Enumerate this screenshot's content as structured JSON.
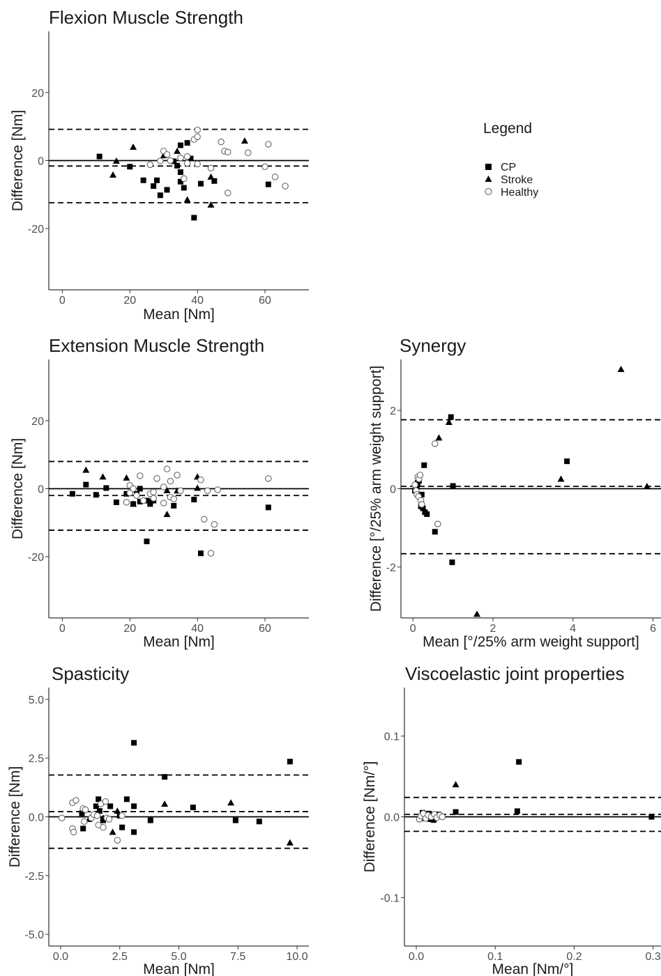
{
  "legend": {
    "title": "Legend",
    "items": [
      {
        "label": "CP",
        "marker": "square-filled"
      },
      {
        "label": "Stroke",
        "marker": "triangle-filled"
      },
      {
        "label": "Healthy",
        "marker": "circle-open"
      }
    ]
  },
  "colors": {
    "marker": "#000000",
    "open_marker_stroke": "#666666",
    "axis": "#000000",
    "text": "#1a1a1a"
  },
  "chart_data": [
    {
      "id": "flexion",
      "type": "scatter",
      "title": "Flexion Muscle Strength",
      "xlabel": "Mean [Nm]",
      "ylabel": "Difference [Nm]",
      "xlim": [
        -4,
        73
      ],
      "ylim": [
        -38,
        38
      ],
      "xticks": [
        0,
        20,
        40,
        60
      ],
      "xticklabels": [
        "0",
        "20",
        "40",
        "60"
      ],
      "yticks": [
        -20,
        0,
        20
      ],
      "yticklabels": [
        "-20",
        "0",
        "20"
      ],
      "reference_lines": {
        "zero": 0,
        "bias": -1.6,
        "loa_upper": 9.2,
        "loa_lower": -12.4
      },
      "series": [
        {
          "name": "CP",
          "points": [
            [
              11,
              1.2
            ],
            [
              20,
              -1.8
            ],
            [
              24,
              -5.8
            ],
            [
              27,
              -7.5
            ],
            [
              28,
              -5.8
            ],
            [
              29,
              -10.2
            ],
            [
              31,
              -8.6
            ],
            [
              33,
              -0.2
            ],
            [
              34,
              -1.5
            ],
            [
              35,
              4.5
            ],
            [
              35,
              -3.4
            ],
            [
              35,
              -6.2
            ],
            [
              36,
              -8
            ],
            [
              37,
              5.2
            ],
            [
              38,
              0.6
            ],
            [
              39,
              -16.8
            ],
            [
              41,
              -6.8
            ],
            [
              45,
              -6
            ],
            [
              61,
              -7
            ]
          ]
        },
        {
          "name": "Stroke",
          "points": [
            [
              15,
              -4.2
            ],
            [
              16,
              -0.1
            ],
            [
              21,
              4
            ],
            [
              30,
              1.5
            ],
            [
              34,
              2.8
            ],
            [
              37,
              -11.5
            ],
            [
              44,
              -13
            ],
            [
              44,
              -4.8
            ],
            [
              54,
              5.8
            ]
          ]
        },
        {
          "name": "Healthy",
          "points": [
            [
              26,
              -1.2
            ],
            [
              29,
              -0.1
            ],
            [
              30,
              2.8
            ],
            [
              31,
              1.8
            ],
            [
              32,
              0
            ],
            [
              35,
              0.8
            ],
            [
              36,
              -5.3
            ],
            [
              37,
              1.2
            ],
            [
              37,
              -0.8
            ],
            [
              39,
              6.2
            ],
            [
              40,
              9
            ],
            [
              40,
              7
            ],
            [
              40,
              -1
            ],
            [
              44,
              -2.2
            ],
            [
              47,
              5.5
            ],
            [
              48,
              2.8
            ],
            [
              49,
              2.5
            ],
            [
              49,
              -9.5
            ],
            [
              55,
              2.3
            ],
            [
              60,
              -1.8
            ],
            [
              61,
              4.8
            ],
            [
              63,
              -4.8
            ],
            [
              66,
              -7.5
            ]
          ]
        }
      ]
    },
    {
      "id": "extension",
      "type": "scatter",
      "title": "Extension Muscle Strength",
      "xlabel": "Mean [Nm]",
      "ylabel": "Difference [Nm]",
      "xlim": [
        -4,
        73
      ],
      "ylim": [
        -38,
        38
      ],
      "xticks": [
        0,
        20,
        40,
        60
      ],
      "xticklabels": [
        "0",
        "20",
        "40",
        "60"
      ],
      "yticks": [
        -20,
        0,
        20
      ],
      "yticklabels": [
        "-20",
        "0",
        "20"
      ],
      "reference_lines": {
        "zero": 0,
        "bias": -2,
        "loa_upper": 8,
        "loa_lower": -12.2
      },
      "series": [
        {
          "name": "CP",
          "points": [
            [
              3,
              -1.5
            ],
            [
              7,
              1.2
            ],
            [
              10,
              -1.8
            ],
            [
              13,
              0.2
            ],
            [
              16,
              -4
            ],
            [
              19,
              -1.5
            ],
            [
              21,
              -4.5
            ],
            [
              22,
              -1.5
            ],
            [
              23,
              -3.8
            ],
            [
              23,
              0
            ],
            [
              25,
              -15.5
            ],
            [
              25,
              -3.5
            ],
            [
              26,
              -4.5
            ],
            [
              26,
              -3.8
            ],
            [
              27,
              -3.5
            ],
            [
              33,
              -5
            ],
            [
              39,
              -3.2
            ],
            [
              41,
              -19
            ],
            [
              61,
              -5.5
            ]
          ]
        },
        {
          "name": "Stroke",
          "points": [
            [
              7,
              5.5
            ],
            [
              12,
              3.5
            ],
            [
              19,
              3.2
            ],
            [
              21,
              -4.5
            ],
            [
              31,
              -0.5
            ],
            [
              31,
              -7.5
            ],
            [
              34,
              -0.6
            ],
            [
              40,
              3.5
            ],
            [
              40,
              0.2
            ]
          ]
        },
        {
          "name": "Healthy",
          "points": [
            [
              19,
              -4
            ],
            [
              20,
              1
            ],
            [
              20,
              -1.2
            ],
            [
              21,
              0
            ],
            [
              22,
              -2
            ],
            [
              23,
              3.8
            ],
            [
              24,
              -3.5
            ],
            [
              26,
              -1.5
            ],
            [
              27,
              -1
            ],
            [
              27,
              -2.8
            ],
            [
              28,
              3
            ],
            [
              30,
              0.5
            ],
            [
              30,
              -4.2
            ],
            [
              31,
              5.8
            ],
            [
              32,
              2.2
            ],
            [
              32,
              -2.5
            ],
            [
              33,
              -3
            ],
            [
              34,
              4
            ],
            [
              35,
              -0.6
            ],
            [
              41,
              2.6
            ],
            [
              42,
              -9
            ],
            [
              43,
              -0.6
            ],
            [
              44,
              -19
            ],
            [
              45,
              -10.5
            ],
            [
              46,
              -0.3
            ],
            [
              61,
              3
            ]
          ]
        }
      ]
    },
    {
      "id": "synergy",
      "type": "scatter",
      "title": "Synergy",
      "xlabel": "Mean [°/25% arm weight support]",
      "ylabel": "Difference [°/25% arm weight support]",
      "xlim": [
        -0.3,
        6.2
      ],
      "ylim": [
        -3.3,
        3.3
      ],
      "xticks": [
        0,
        2,
        4,
        6
      ],
      "xticklabels": [
        "0",
        "2",
        "4",
        "6"
      ],
      "yticks": [
        -2,
        0,
        2
      ],
      "yticklabels": [
        "-2",
        "0",
        "2"
      ],
      "reference_lines": {
        "zero": 0,
        "bias": 0.06,
        "loa_upper": 1.76,
        "loa_lower": -1.66
      },
      "series": [
        {
          "name": "CP",
          "points": [
            [
              0.05,
              -0.05
            ],
            [
              0.1,
              0.05
            ],
            [
              0.12,
              0.15
            ],
            [
              0.15,
              0.2
            ],
            [
              0.2,
              -0.45
            ],
            [
              0.22,
              -0.15
            ],
            [
              0.25,
              -0.5
            ],
            [
              0.28,
              0.6
            ],
            [
              0.3,
              -0.6
            ],
            [
              0.35,
              -0.65
            ],
            [
              0.55,
              -1.1
            ],
            [
              0.95,
              1.83
            ],
            [
              0.98,
              -1.88
            ],
            [
              1.0,
              0.07
            ],
            [
              3.85,
              0.7
            ]
          ]
        },
        {
          "name": "Stroke",
          "points": [
            [
              0.9,
              1.7
            ],
            [
              0.65,
              1.3
            ],
            [
              1.6,
              -3.2
            ],
            [
              3.7,
              0.25
            ],
            [
              5.2,
              3.05
            ],
            [
              5.85,
              0.06
            ]
          ]
        },
        {
          "name": "Healthy",
          "points": [
            [
              0.05,
              0.1
            ],
            [
              0.08,
              -0.05
            ],
            [
              0.1,
              -0.15
            ],
            [
              0.12,
              0.3
            ],
            [
              0.14,
              -0.2
            ],
            [
              0.15,
              0.25
            ],
            [
              0.18,
              0.35
            ],
            [
              0.2,
              -0.3
            ],
            [
              0.22,
              -0.4
            ],
            [
              0.55,
              1.15
            ],
            [
              0.62,
              -0.9
            ]
          ]
        }
      ]
    },
    {
      "id": "spasticity",
      "type": "scatter",
      "title": "Spasticity",
      "xlabel": "Mean [Nm]",
      "ylabel": "Difference [Nm]",
      "xlim": [
        -0.5,
        10.5
      ],
      "ylim": [
        -5.5,
        5.5
      ],
      "xticks": [
        0,
        2.5,
        5,
        7.5,
        10
      ],
      "xticklabels": [
        "0.0",
        "2.5",
        "5.0",
        "7.5",
        "10.0"
      ],
      "yticks": [
        -5,
        -2.5,
        0,
        2.5,
        5
      ],
      "yticklabels": [
        "-5.0",
        "-2.5",
        "0.0",
        "2.5",
        "5.0"
      ],
      "reference_lines": {
        "zero": 0,
        "bias": 0.22,
        "loa_upper": 1.78,
        "loa_lower": -1.34
      },
      "series": [
        {
          "name": "CP",
          "points": [
            [
              0.9,
              0.15
            ],
            [
              0.95,
              -0.5
            ],
            [
              1.5,
              0.45
            ],
            [
              1.6,
              0.75
            ],
            [
              1.65,
              0.25
            ],
            [
              1.8,
              -0.15
            ],
            [
              2.1,
              0.45
            ],
            [
              2.5,
              0.05
            ],
            [
              2.6,
              -0.45
            ],
            [
              2.8,
              0.75
            ],
            [
              3.1,
              3.15
            ],
            [
              3.1,
              0.45
            ],
            [
              3.1,
              -0.65
            ],
            [
              3.8,
              -0.15
            ],
            [
              4.4,
              1.7
            ],
            [
              5.6,
              0.4
            ],
            [
              7.4,
              -0.15
            ],
            [
              8.4,
              -0.2
            ],
            [
              9.7,
              2.35
            ]
          ]
        },
        {
          "name": "Stroke",
          "points": [
            [
              1.2,
              -0.1
            ],
            [
              1.8,
              -0.05
            ],
            [
              2.2,
              -0.65
            ],
            [
              2.4,
              0.25
            ],
            [
              4.4,
              0.55
            ],
            [
              7.2,
              0.6
            ],
            [
              9.7,
              -1.1
            ]
          ]
        },
        {
          "name": "Healthy",
          "points": [
            [
              0.05,
              -0.05
            ],
            [
              0.5,
              0.6
            ],
            [
              0.5,
              -0.5
            ],
            [
              0.55,
              -0.65
            ],
            [
              0.65,
              0.7
            ],
            [
              0.95,
              0.35
            ],
            [
              1.0,
              -0.2
            ],
            [
              1.05,
              0.3
            ],
            [
              1.3,
              -0.05
            ],
            [
              1.4,
              0.1
            ],
            [
              1.55,
              0.05
            ],
            [
              1.6,
              -0.35
            ],
            [
              1.7,
              0.55
            ],
            [
              1.8,
              -0.45
            ],
            [
              1.9,
              0.65
            ],
            [
              1.95,
              -0.05
            ],
            [
              2.05,
              -0.1
            ],
            [
              2.4,
              -1.0
            ],
            [
              2.6,
              0.05
            ]
          ]
        }
      ]
    },
    {
      "id": "viscoelastic",
      "type": "scatter",
      "title": "Viscoelastic joint properties",
      "xlabel": "Mean [Nm/°]",
      "ylabel": "Difference [Nm/°]",
      "xlim": [
        -0.015,
        0.31
      ],
      "ylim": [
        -0.16,
        0.16
      ],
      "xticks": [
        0,
        0.1,
        0.2,
        0.3
      ],
      "xticklabels": [
        "0.0",
        "0.1",
        "0.2",
        "0.3"
      ],
      "yticks": [
        -0.1,
        0,
        0.1
      ],
      "yticklabels": [
        "-0.1",
        "0.0",
        "0.1"
      ],
      "reference_lines": {
        "zero": 0,
        "bias": 0.003,
        "loa_upper": 0.024,
        "loa_lower": -0.018
      },
      "series": [
        {
          "name": "CP",
          "points": [
            [
              0.008,
              0.005
            ],
            [
              0.01,
              -0.002
            ],
            [
              0.012,
              0.003
            ],
            [
              0.014,
              0.0
            ],
            [
              0.016,
              0.004
            ],
            [
              0.018,
              -0.003
            ],
            [
              0.02,
              0.002
            ],
            [
              0.022,
              -0.004
            ],
            [
              0.025,
              0.001
            ],
            [
              0.028,
              0.003
            ],
            [
              0.05,
              0.006
            ],
            [
              0.128,
              0.007
            ],
            [
              0.13,
              0.068
            ],
            [
              0.298,
              0.0
            ]
          ]
        },
        {
          "name": "Stroke",
          "points": [
            [
              0.05,
              0.04
            ],
            [
              0.011,
              -0.001
            ],
            [
              0.018,
              0.001
            ]
          ]
        },
        {
          "name": "Healthy",
          "points": [
            [
              0.004,
              -0.003
            ],
            [
              0.006,
              0.001
            ],
            [
              0.009,
              0.004
            ],
            [
              0.012,
              -0.002
            ],
            [
              0.015,
              0.002
            ],
            [
              0.019,
              0.0
            ],
            [
              0.023,
              0.003
            ],
            [
              0.026,
              -0.001
            ],
            [
              0.03,
              0.002
            ],
            [
              0.033,
              0.0
            ]
          ]
        }
      ]
    }
  ]
}
